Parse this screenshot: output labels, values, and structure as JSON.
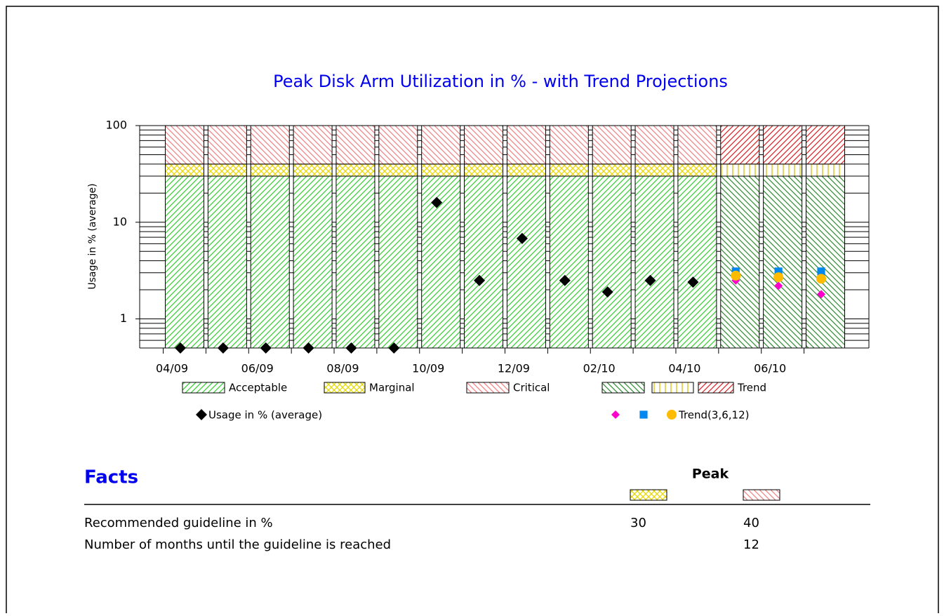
{
  "chart_data": {
    "type": "stacked-bar",
    "title": "Peak Disk Arm Utilization in % - with Trend Projections",
    "ylabel": "Usage in % (average)",
    "log_scale": true,
    "ylim": [
      0.5,
      100
    ],
    "yticks": [
      1,
      10,
      100
    ],
    "categories": [
      "04/09",
      null,
      "06/09",
      null,
      "08/09",
      null,
      "10/09",
      null,
      "12/09",
      null,
      "02/10",
      null,
      "04/10",
      null,
      "06/10",
      null
    ],
    "series": [
      {
        "name": "Acceptable",
        "color": "#33cc33",
        "values": [
          30,
          30,
          30,
          30,
          30,
          30,
          30,
          30,
          30,
          30,
          30,
          30,
          30,
          null,
          null,
          null
        ]
      },
      {
        "name": "Marginal",
        "color": "#e6d800",
        "values": [
          10,
          10,
          10,
          10,
          10,
          10,
          10,
          10,
          10,
          10,
          10,
          10,
          10,
          null,
          null,
          null
        ]
      },
      {
        "name": "Critical",
        "color": "#f08080",
        "values": [
          60,
          60,
          60,
          60,
          60,
          60,
          60,
          60,
          60,
          60,
          60,
          60,
          60,
          null,
          null,
          null
        ]
      },
      {
        "name": null,
        "color": "#2e8b2e",
        "values": [
          null,
          null,
          null,
          null,
          null,
          null,
          null,
          null,
          null,
          null,
          null,
          null,
          null,
          30,
          30,
          30
        ]
      },
      {
        "name": null,
        "color": "#d4b800",
        "values": [
          null,
          null,
          null,
          null,
          null,
          null,
          null,
          null,
          null,
          null,
          null,
          null,
          null,
          10,
          10,
          10
        ]
      },
      {
        "name": "Trend",
        "color": "#dd2222",
        "values": [
          null,
          null,
          null,
          null,
          null,
          null,
          null,
          null,
          null,
          null,
          null,
          null,
          null,
          60,
          60,
          60
        ]
      }
    ],
    "markers": [
      {
        "name": "Usage in % (average)",
        "color": "#000000",
        "marker": "diamond",
        "values": [
          0.5,
          0.5,
          0.5,
          0.5,
          0.5,
          0.5,
          16,
          2.5,
          6.8,
          2.5,
          1.9,
          2.5,
          2.4,
          null,
          null,
          null
        ]
      },
      {
        "name": null,
        "color": "#ff00cc",
        "marker": "diamond",
        "values": [
          null,
          null,
          null,
          null,
          null,
          null,
          null,
          null,
          null,
          null,
          null,
          null,
          null,
          2.5,
          2.2,
          1.8
        ]
      },
      {
        "name": null,
        "color": "#0088ee",
        "marker": "square",
        "values": [
          null,
          null,
          null,
          null,
          null,
          null,
          null,
          null,
          null,
          null,
          null,
          null,
          null,
          3.1,
          3.1,
          3.1
        ]
      },
      {
        "name": "Trend(3,6,12)",
        "color": "#ffbb00",
        "marker": "circle",
        "values": [
          null,
          null,
          null,
          null,
          null,
          null,
          null,
          null,
          null,
          null,
          null,
          null,
          null,
          2.8,
          2.7,
          2.6
        ]
      }
    ]
  },
  "facts": {
    "title": "Facts",
    "column_header": "Peak",
    "rows": [
      {
        "label": "Recommended guideline in %",
        "values": [
          "30",
          "40"
        ]
      },
      {
        "label": "Number of months until the guideline is reached",
        "values": [
          null,
          "12"
        ]
      }
    ]
  }
}
